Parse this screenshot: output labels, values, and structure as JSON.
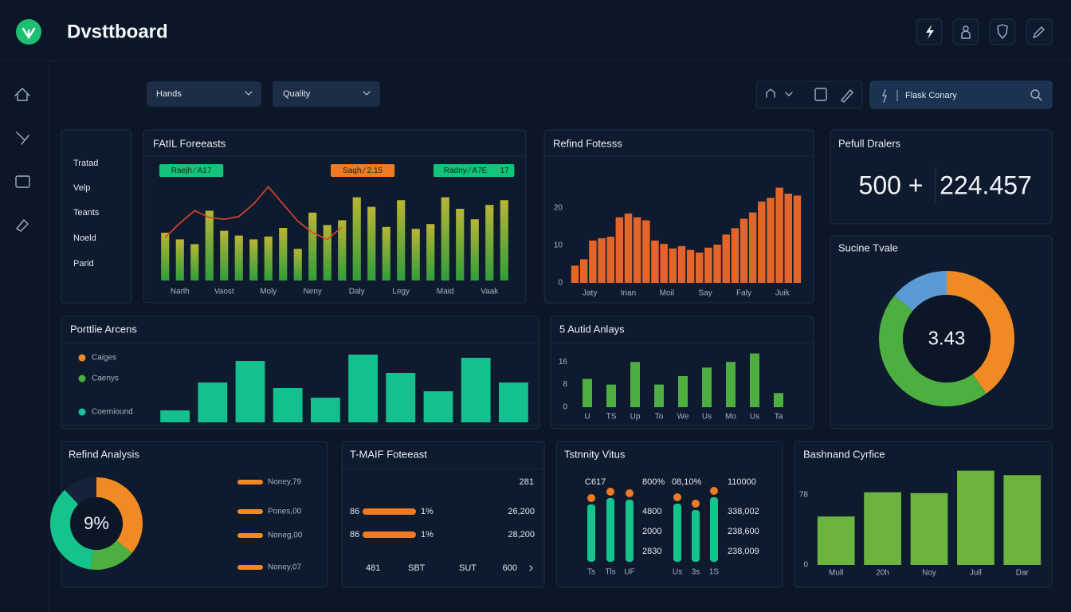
{
  "header": {
    "title": "Dvsttboard"
  },
  "filters": [
    "Hands",
    "Quality"
  ],
  "search": {
    "placeholder": "Flask Conary"
  },
  "list_panel": {
    "items": [
      "Tratad",
      "Velp",
      "Teants",
      "Noeld",
      "Parid"
    ]
  },
  "stats": {
    "title": "Pefull Dralers",
    "values": [
      "500 +",
      "224.457"
    ]
  },
  "tmaif": {
    "title": "T-MAIF Foteeast",
    "rows": [
      [
        "281"
      ],
      [
        "86",
        "1%",
        "26,200"
      ],
      [
        "86",
        "1%",
        "28,200"
      ],
      [
        "481",
        "SBT",
        "SUT",
        "600"
      ]
    ]
  },
  "chart_data": [
    {
      "type": "bar",
      "title": "FAtIL Foreeasts",
      "x_labels": [
        "Narlh",
        "Vaost",
        "Moly",
        "Neny",
        "Daly",
        "Legy",
        "Maid",
        "Vaak"
      ],
      "values": [
        50,
        43,
        38,
        73,
        52,
        47,
        43,
        46,
        55,
        33,
        71,
        58,
        63,
        87,
        77,
        56,
        84,
        54,
        59,
        87,
        75,
        64,
        79,
        84
      ],
      "color": "#2f9e3a",
      "top_color": "#b9b534",
      "line": {
        "values": [
          45,
          60,
          73,
          66,
          64,
          67,
          80,
          98,
          80,
          62,
          50,
          43,
          56,
          null,
          null,
          null,
          null,
          null,
          null,
          null,
          null,
          null,
          null,
          null
        ],
        "color": "#e0452a"
      },
      "ylim": [
        0,
        100
      ],
      "annotations": [
        {
          "text": "Raejh ⁄ A17",
          "color": "#14c47a"
        },
        {
          "text": "Saqh ⁄ 2.15",
          "color": "#f07a22"
        },
        {
          "text": "Radny ⁄ A7E",
          "color": "#14c47a"
        },
        {
          "text": "17",
          "color": "#14c47a"
        }
      ]
    },
    {
      "type": "bar",
      "title": "Refind Fotesss",
      "x_labels": [
        "Jaty",
        "Inan",
        "Moil",
        "Say",
        "Faly",
        "Juik"
      ],
      "values": [
        4.6,
        6.3,
        11.3,
        11.9,
        12.3,
        17.5,
        18.5,
        17.5,
        16.7,
        11.3,
        10.4,
        9.2,
        9.8,
        8.8,
        8.1,
        9.4,
        10.2,
        12.9,
        14.6,
        17.1,
        18.8,
        21.7,
        22.7,
        25.4,
        23.8,
        23.3
      ],
      "color": "#e4652a",
      "ylim": [
        0,
        27
      ],
      "yticks": [
        0,
        10,
        20
      ]
    },
    {
      "type": "donut",
      "title": "Sucine Tvale",
      "center_label": "3.43",
      "values": [
        40,
        46,
        14
      ],
      "colors": [
        "#f08a24",
        "#4caf3f",
        "#5b9bd5"
      ]
    },
    {
      "type": "bar",
      "title": "Porttlie Arcens",
      "legend": [
        {
          "name": "Caiges",
          "color": "#f08a24"
        },
        {
          "name": "Caenys",
          "color": "#4caf3f"
        },
        {
          "name": "Coerniound",
          "color": "#17c3a0"
        }
      ],
      "values": [
        15,
        50,
        77,
        43,
        31,
        85,
        62,
        39,
        81,
        50
      ],
      "color": "#13c08e",
      "ylim": [
        0,
        90
      ]
    },
    {
      "type": "bar",
      "title": "5 Autid Anlays",
      "categories": [
        "U",
        "TS",
        "Up",
        "To",
        "We",
        "Us",
        "Mo",
        "Us",
        "Ta"
      ],
      "values": [
        10,
        8,
        16,
        8,
        11,
        14,
        16,
        19,
        5
      ],
      "color": "#4caf3f",
      "ylim": [
        0,
        20
      ],
      "yticks": [
        0,
        8,
        16
      ]
    },
    {
      "type": "donut",
      "title": "Refind Analysis",
      "center_label": "9%",
      "values": [
        36,
        16,
        36,
        12
      ],
      "colors": [
        "#f08a24",
        "#4caf3f",
        "#14c48c",
        "#15233a"
      ],
      "legend_labels": [
        "Noney,79",
        "Pones,00",
        "Noneg,00",
        "Noney,07"
      ]
    },
    {
      "type": "lollipop",
      "title": "Tstnnity Vitus",
      "categories": [
        "Ts",
        "Tls",
        "UF",
        "Us",
        "3s",
        "1S"
      ],
      "values": [
        72,
        80,
        78,
        73,
        65,
        81
      ],
      "color": "#14c48c",
      "dot_color": "#f07a22",
      "ylim": [
        0,
        90
      ],
      "annotations": [
        "C617",
        "800%",
        "08,10%",
        "110000",
        "4800",
        "2000",
        "2830",
        "338,002",
        "238,600",
        "238,009"
      ]
    },
    {
      "type": "bar",
      "title": "Bashnand Cyrfice",
      "categories": [
        "Mull",
        "20h",
        "Noy",
        "Jull",
        "Dar"
      ],
      "values": [
        54,
        81,
        80,
        105,
        100
      ],
      "color": "#6cb33f",
      "ylim": [
        0,
        110
      ],
      "yticks": [
        0,
        78
      ]
    }
  ]
}
